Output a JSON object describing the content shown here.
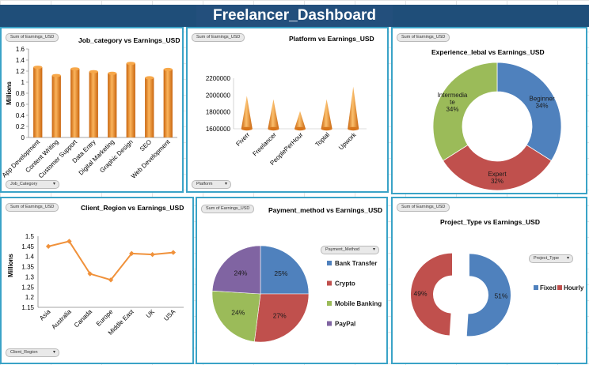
{
  "dashboard": {
    "title": "Freelancer_Dashboard"
  },
  "field_button_label": "Sum of Earnings_USD",
  "panels": {
    "job_category": {
      "title": "Job_category  vs Earnings_USD",
      "filter": "Job_Category"
    },
    "platform": {
      "title": "Platform  vs Earnings_USD",
      "filter": "Platform"
    },
    "experience": {
      "title": "Experience_lebal  vs Earnings_USD"
    },
    "client_region": {
      "title": "Client_Region  vs Earnings_USD",
      "filter": "Client_Region"
    },
    "payment": {
      "title": "Payment_method  vs Earnings_USD",
      "filter": "Payment_Method"
    },
    "project_type": {
      "title": "Project_Type vs Earnings_USD",
      "filter": "Project_Type"
    }
  },
  "chart_data": [
    {
      "id": "job_category",
      "type": "bar",
      "ylabel": "Millions",
      "ylim": [
        0,
        1.6
      ],
      "yticks": [
        "0",
        "0.2",
        "0.4",
        "0.6",
        "0.8",
        "1",
        "1.2",
        "1.4",
        "1.6"
      ],
      "categories": [
        "App Development",
        "Content Writing",
        "Customer Support",
        "Data Entry",
        "Digital Marketing",
        "Graphic Design",
        "SEO",
        "Web Development"
      ],
      "values": [
        1.27,
        1.12,
        1.24,
        1.19,
        1.16,
        1.34,
        1.08,
        1.23
      ],
      "color": "#e8851f"
    },
    {
      "id": "platform",
      "type": "bar",
      "ylim": [
        1600000,
        2200000
      ],
      "yticks": [
        "1600000",
        "1800000",
        "2000000",
        "2200000"
      ],
      "categories": [
        "Fiverr",
        "Freelancer",
        "PeoplePerHour",
        "Toptal",
        "Upwork"
      ],
      "values": [
        1990000,
        1950000,
        1810000,
        1950000,
        2100000
      ],
      "color": "#e8851f"
    },
    {
      "id": "experience",
      "type": "pie",
      "labels": [
        "Beginner",
        "Expert",
        "Intermediate"
      ],
      "label_lines": [
        [
          "Beginner"
        ],
        [
          "Expert"
        ],
        [
          "Intermedia",
          "te"
        ]
      ],
      "values": [
        34,
        32,
        34
      ],
      "pct_labels": [
        "34%",
        "32%",
        "34%"
      ],
      "colors": [
        "#4f81bd",
        "#c0504d",
        "#9bbb59"
      ]
    },
    {
      "id": "client_region",
      "type": "line",
      "ylabel": "Millions",
      "ylim": [
        1.15,
        1.5
      ],
      "yticks": [
        "1.15",
        "1.2",
        "1.25",
        "1.3",
        "1.35",
        "1.4",
        "1.45",
        "1.5"
      ],
      "categories": [
        "Asia",
        "Australia",
        "Canada",
        "Europe",
        "Middle East",
        "UK",
        "USA"
      ],
      "values": [
        1.45,
        1.475,
        1.315,
        1.285,
        1.415,
        1.41,
        1.42
      ],
      "color": "#f0913a"
    },
    {
      "id": "payment",
      "type": "pie",
      "labels": [
        "Bank Transfer",
        "Crypto",
        "Mobile Banking",
        "PayPal"
      ],
      "values": [
        25,
        27,
        24,
        24
      ],
      "pct_labels": [
        "25%",
        "27%",
        "24%",
        "24%"
      ],
      "colors": [
        "#4f81bd",
        "#c0504d",
        "#9bbb59",
        "#8064a2"
      ]
    },
    {
      "id": "project_type",
      "type": "pie",
      "labels": [
        "Fixed",
        "Hourly"
      ],
      "values": [
        51,
        49
      ],
      "pct_labels": [
        "51%",
        "49%"
      ],
      "colors": [
        "#4f81bd",
        "#c0504d"
      ]
    }
  ]
}
